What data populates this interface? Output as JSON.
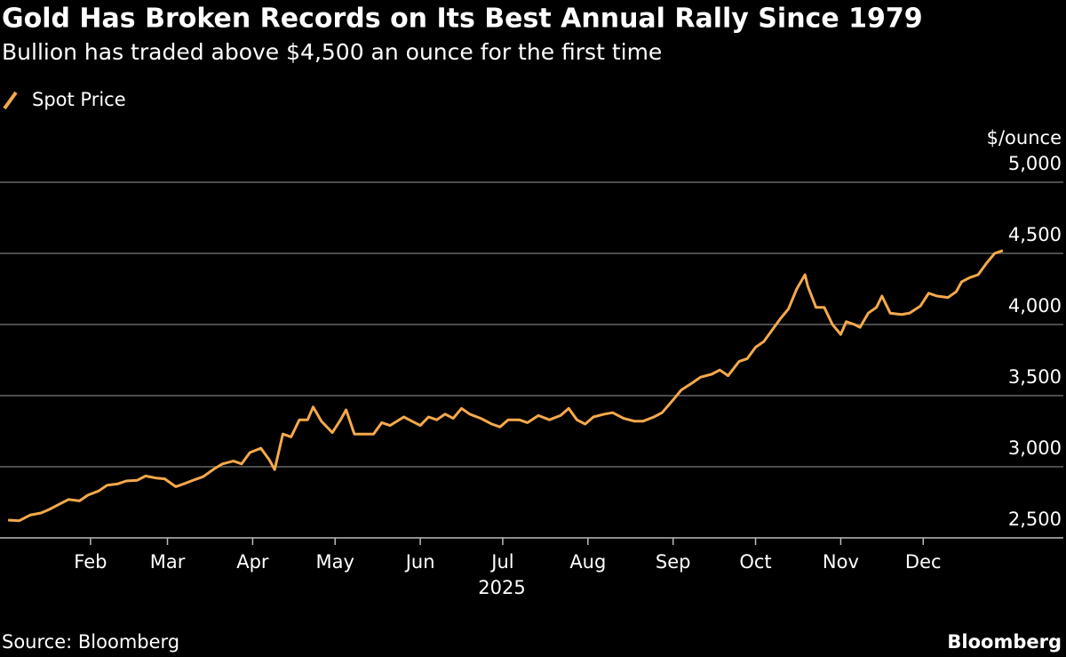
{
  "chart_data": {
    "type": "line",
    "title": "Gold Has Broken Records on Its Best Annual Rally Since 1979",
    "subtitle": "Bullion has traded above $4,500 an ounce for the first time",
    "y_label": "$/ounce",
    "x_label": "2025",
    "source": "Source: Bloomberg",
    "brand": "Bloomberg",
    "x": [
      2,
      6,
      10,
      14,
      17,
      21,
      24,
      28,
      31,
      35,
      38,
      42,
      45,
      49,
      52,
      56,
      59,
      63,
      66,
      70,
      73,
      77,
      80,
      84,
      87,
      90,
      94,
      97,
      99,
      102,
      105,
      108,
      111,
      113,
      116,
      120,
      123,
      125,
      128,
      131,
      135,
      138,
      141,
      146,
      149,
      152,
      155,
      158,
      161,
      164,
      167,
      170,
      174,
      178,
      181,
      184,
      188,
      191,
      195,
      199,
      203,
      206,
      209,
      212,
      215,
      219,
      222,
      226,
      230,
      233,
      237,
      240,
      244,
      247,
      251,
      254,
      258,
      261,
      264,
      268,
      271,
      274,
      277,
      280,
      283,
      286,
      289,
      292,
      293,
      296,
      299,
      302,
      305,
      307,
      310,
      312,
      315,
      318,
      320,
      323,
      327,
      330,
      334,
      337,
      340,
      344,
      347,
      349,
      352,
      355,
      358,
      361,
      364
    ],
    "series": [
      {
        "name": "Spot Price",
        "color": "#f5a94b",
        "values": [
          2625,
          2620,
          2660,
          2675,
          2700,
          2740,
          2770,
          2760,
          2800,
          2830,
          2870,
          2880,
          2900,
          2905,
          2935,
          2920,
          2915,
          2860,
          2880,
          2910,
          2930,
          2985,
          3020,
          3040,
          3020,
          3100,
          3130,
          3050,
          2980,
          3230,
          3210,
          3330,
          3330,
          3420,
          3320,
          3240,
          3330,
          3400,
          3230,
          3230,
          3230,
          3310,
          3290,
          3350,
          3320,
          3290,
          3350,
          3330,
          3370,
          3340,
          3410,
          3370,
          3340,
          3300,
          3280,
          3330,
          3330,
          3310,
          3360,
          3330,
          3360,
          3410,
          3330,
          3300,
          3350,
          3370,
          3380,
          3340,
          3320,
          3320,
          3350,
          3380,
          3470,
          3540,
          3590,
          3630,
          3650,
          3680,
          3640,
          3740,
          3760,
          3840,
          3880,
          3960,
          4040,
          4110,
          4250,
          4350,
          4270,
          4120,
          4120,
          4000,
          3930,
          4020,
          4000,
          3980,
          4080,
          4120,
          4200,
          4080,
          4070,
          4080,
          4130,
          4220,
          4200,
          4190,
          4230,
          4300,
          4330,
          4350,
          4430,
          4500,
          4520
        ]
      }
    ],
    "xlim": [
      1,
      386
    ],
    "xticks": [
      {
        "value": 32,
        "label": "Feb"
      },
      {
        "value": 60,
        "label": "Mar"
      },
      {
        "value": 91,
        "label": "Apr"
      },
      {
        "value": 121,
        "label": "May"
      },
      {
        "value": 152,
        "label": "Jun"
      },
      {
        "value": 182,
        "label": "Jul"
      },
      {
        "value": 213,
        "label": "Aug"
      },
      {
        "value": 244,
        "label": "Sep"
      },
      {
        "value": 274,
        "label": "Oct"
      },
      {
        "value": 305,
        "label": "Nov"
      },
      {
        "value": 335,
        "label": "Dec"
      }
    ],
    "ylim": [
      2500,
      5000
    ],
    "yticks": [
      {
        "value": 2500,
        "label": "2,500"
      },
      {
        "value": 3000,
        "label": "3,000"
      },
      {
        "value": 3500,
        "label": "3,500"
      },
      {
        "value": 4000,
        "label": "4,000"
      },
      {
        "value": 4500,
        "label": "4,500"
      },
      {
        "value": 5000,
        "label": "5,000"
      }
    ],
    "grid": true
  }
}
